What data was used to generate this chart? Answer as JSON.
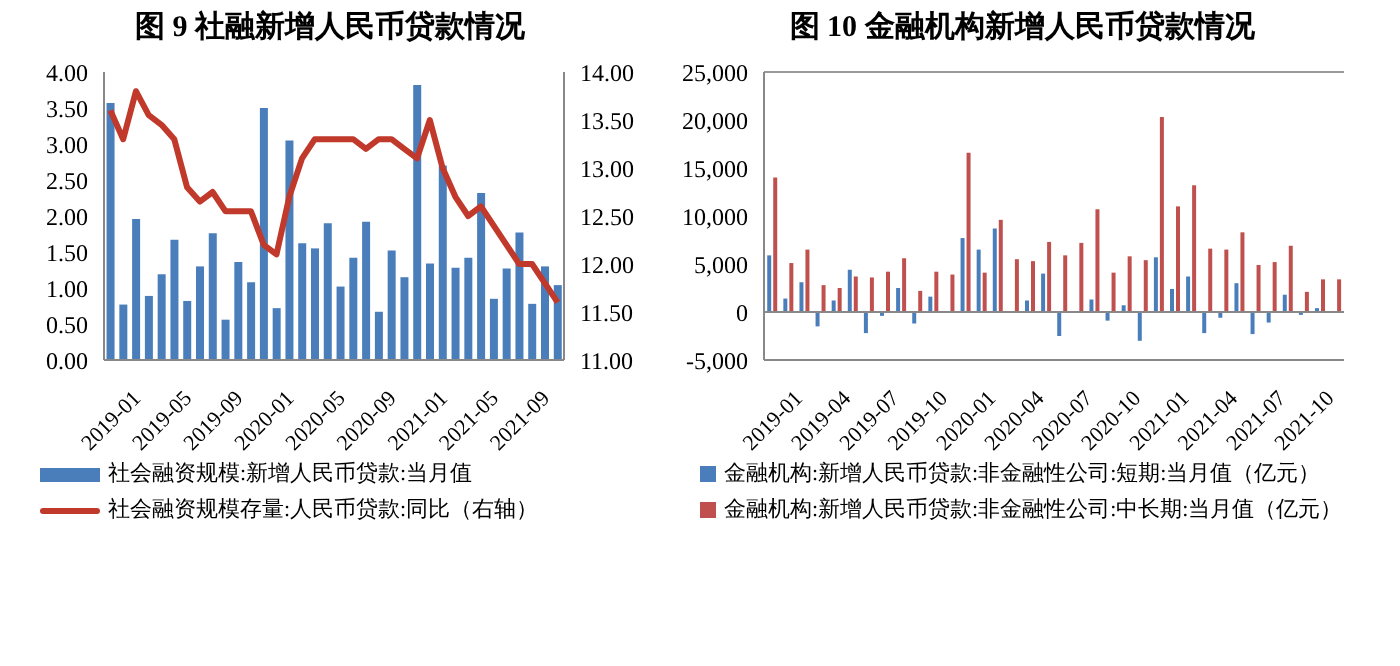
{
  "chart_data": [
    {
      "type": "bar",
      "title": "图 9  社融新增人民币贷款情况",
      "categories": [
        "2019-01",
        null,
        null,
        null,
        "2019-05",
        null,
        null,
        null,
        "2019-09",
        null,
        null,
        null,
        "2020-01",
        null,
        null,
        null,
        "2020-05",
        null,
        null,
        null,
        "2020-09",
        null,
        null,
        null,
        "2021-01",
        null,
        null,
        null,
        "2021-05",
        null,
        null,
        null,
        "2021-09",
        null,
        null,
        null
      ],
      "series": [
        {
          "name": "社会融资规模:新增人民币贷款:当月值",
          "color": "#4a7ebb",
          "values": [
            3.57,
            0.77,
            1.96,
            0.89,
            1.19,
            1.67,
            0.82,
            1.3,
            1.76,
            0.56,
            1.36,
            1.08,
            3.5,
            0.72,
            3.05,
            1.62,
            1.55,
            1.9,
            1.02,
            1.42,
            1.92,
            0.67,
            1.52,
            1.15,
            3.82,
            1.34,
            2.7,
            1.28,
            1.42,
            2.32,
            0.85,
            1.27,
            1.77,
            0.78,
            1.3,
            1.04
          ]
        },
        {
          "name": "社会融资规模存量:人民币贷款:同比（右轴）",
          "type": "line",
          "axis": "y2",
          "color": "#c0392b",
          "values": [
            13.6,
            13.3,
            13.8,
            13.55,
            13.45,
            13.3,
            12.8,
            12.65,
            12.75,
            12.55,
            12.55,
            12.55,
            12.2,
            12.1,
            12.7,
            13.1,
            13.3,
            13.3,
            13.3,
            13.3,
            13.2,
            13.3,
            13.3,
            13.2,
            13.1,
            13.5,
            13.0,
            12.7,
            12.5,
            12.6,
            12.4,
            12.2,
            12.0,
            12.0,
            11.8,
            11.6
          ]
        }
      ],
      "ylim": [
        0,
        4
      ],
      "yticks": [
        {
          "value": 0,
          "label": "0.00"
        },
        {
          "value": 0.5,
          "label": "0.50"
        },
        {
          "value": 1,
          "label": "1.00"
        },
        {
          "value": 1.5,
          "label": "1.50"
        },
        {
          "value": 2,
          "label": "2.00"
        },
        {
          "value": 2.5,
          "label": "2.50"
        },
        {
          "value": 3,
          "label": "3.00"
        },
        {
          "value": 3.5,
          "label": "3.50"
        },
        {
          "value": 4,
          "label": "4.00"
        }
      ],
      "y2lim": [
        11,
        14
      ],
      "y2ticks": [
        {
          "value": 11,
          "label": "11.00"
        },
        {
          "value": 11.5,
          "label": "11.50"
        },
        {
          "value": 12,
          "label": "12.00"
        },
        {
          "value": 12.5,
          "label": "12.50"
        },
        {
          "value": 13,
          "label": "13.00"
        },
        {
          "value": 13.5,
          "label": "13.50"
        },
        {
          "value": 14,
          "label": "14.00"
        }
      ],
      "grid": false,
      "legend": "bottom",
      "marker": "none"
    },
    {
      "type": "bar",
      "title": "图 10  金融机构新增人民币贷款情况",
      "categories": [
        "2019-01",
        null,
        null,
        "2019-04",
        null,
        null,
        "2019-07",
        null,
        null,
        "2019-10",
        null,
        null,
        "2020-01",
        null,
        null,
        "2020-04",
        null,
        null,
        "2020-07",
        null,
        null,
        "2020-10",
        null,
        null,
        "2021-01",
        null,
        null,
        "2021-04",
        null,
        null,
        "2021-07",
        null,
        null,
        "2021-10",
        null,
        null
      ],
      "stacked": false,
      "series": [
        {
          "name": "金融机构:新增人民币贷款:非金融性公司:短期:当月值（亿元）",
          "color": "#4a7ebb",
          "values": [
            5900,
            1400,
            3100,
            -1500,
            1200,
            4400,
            -2200,
            -400,
            2500,
            -1200,
            1600,
            0,
            7700,
            6500,
            8700,
            0,
            1200,
            4000,
            -2500,
            0,
            1300,
            -900,
            700,
            -3000,
            5700,
            2400,
            3700,
            -2200,
            -600,
            3000,
            -2300,
            -1100,
            1800,
            -300,
            400,
            0
          ]
        },
        {
          "name": "金融机构:新增人民币贷款:非金融性公司:中长期:当月值（亿元）",
          "color": "#c0504d",
          "values": [
            14000,
            5100,
            6500,
            2800,
            2500,
            3700,
            3600,
            4200,
            5600,
            2200,
            4200,
            3900,
            16600,
            4100,
            9600,
            5500,
            5300,
            7300,
            5900,
            7200,
            10700,
            4100,
            5800,
            5400,
            20300,
            11000,
            13200,
            6600,
            6500,
            8300,
            4900,
            5200,
            6900,
            2100,
            3400,
            3400
          ]
        }
      ],
      "ylim": [
        -5000,
        25000
      ],
      "yticks": [
        {
          "value": -5000,
          "label": "-5,000"
        },
        0,
        {
          "value": 5000,
          "label": "5,000"
        },
        {
          "value": 10000,
          "label": "10,000"
        },
        {
          "value": 15000,
          "label": "15,000"
        },
        {
          "value": 20000,
          "label": "20,000"
        },
        {
          "value": 25000,
          "label": "25,000"
        }
      ],
      "grid": "y",
      "legend": "bottom"
    }
  ]
}
